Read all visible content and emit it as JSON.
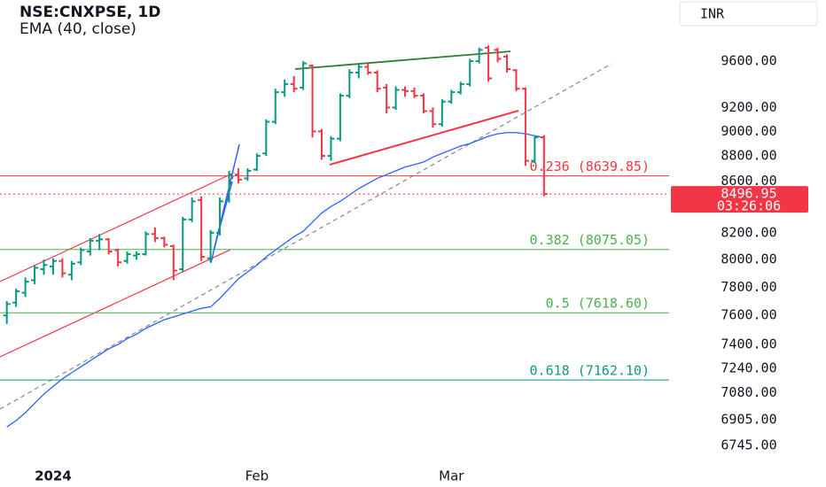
{
  "chart_data": {
    "type": "ohlc",
    "title": "NSE:CNXPSE, 1D",
    "subtitle": "EMA (40, close)",
    "currency": "INR",
    "log_scale": true,
    "up_color": "#089981",
    "down_color": "#f23645",
    "categories": [
      null,
      null,
      null,
      null,
      null,
      "2024",
      null,
      null,
      null,
      null,
      null,
      null,
      null,
      null,
      null,
      null,
      null,
      null,
      null,
      null,
      null,
      null,
      null,
      null,
      null,
      null,
      null,
      "Feb",
      null,
      null,
      null,
      null,
      null,
      null,
      null,
      null,
      null,
      null,
      null,
      null,
      null,
      null,
      null,
      null,
      null,
      null,
      null,
      null,
      "Mar",
      null,
      null,
      null,
      null,
      null,
      null,
      null,
      null,
      null,
      null
    ],
    "open": [
      7600,
      7690,
      7760,
      7850,
      7930,
      7950,
      7990,
      7890,
      7980,
      8060,
      8140,
      8150,
      8070,
      7990,
      8030,
      8040,
      8190,
      8160,
      8100,
      7930,
      8300,
      8450,
      8010,
      8200,
      8450,
      8650,
      8620,
      8690,
      8820,
      9080,
      9330,
      9400,
      9370,
      9560,
      9000,
      8800,
      8940,
      9300,
      9500,
      9550,
      9500,
      9370,
      9200,
      9350,
      9340,
      9300,
      9170,
      9060,
      9250,
      9330,
      9400,
      9600,
      9720,
      9700,
      9640,
      9520,
      9360,
      8760,
      8950
    ],
    "high": [
      7700,
      7790,
      7870,
      7960,
      8000,
      8010,
      8010,
      7990,
      8090,
      8160,
      8190,
      8160,
      8080,
      8060,
      8060,
      8210,
      8240,
      8170,
      8110,
      8320,
      8470,
      8480,
      8220,
      8470,
      8680,
      8700,
      8700,
      8820,
      9100,
      9360,
      9440,
      9470,
      9600,
      9570,
      9020,
      8960,
      9320,
      9530,
      9570,
      9580,
      9520,
      9400,
      9380,
      9380,
      9370,
      9320,
      9200,
      9270,
      9350,
      9420,
      9620,
      9720,
      9740,
      9720,
      9660,
      9530,
      9370,
      8960,
      8970
    ],
    "low": [
      7540,
      7660,
      7730,
      7820,
      7890,
      7890,
      7870,
      7850,
      7960,
      8030,
      8070,
      8040,
      7950,
      7970,
      8000,
      8030,
      8130,
      8090,
      7850,
      7910,
      8280,
      7990,
      7980,
      8180,
      8430,
      8580,
      8600,
      8680,
      8800,
      9060,
      9290,
      9330,
      9350,
      8950,
      8770,
      8760,
      8920,
      9280,
      9450,
      9480,
      9330,
      9150,
      9180,
      9290,
      9280,
      9150,
      9030,
      9040,
      9230,
      9310,
      9380,
      9580,
      9420,
      9590,
      9500,
      9340,
      8720,
      8740,
      8480
    ],
    "close": [
      7680,
      7770,
      7840,
      7940,
      7960,
      7990,
      7900,
      7970,
      8070,
      8140,
      8150,
      8060,
      7980,
      8040,
      8040,
      8190,
      8160,
      8110,
      7920,
      8300,
      8440,
      8020,
      8200,
      8440,
      8650,
      8610,
      8680,
      8800,
      9080,
      9330,
      9400,
      9360,
      9580,
      9000,
      8800,
      8940,
      9300,
      9500,
      9550,
      9500,
      9360,
      9200,
      9350,
      9340,
      9300,
      9170,
      9060,
      9250,
      9330,
      9400,
      9600,
      9700,
      9450,
      9620,
      9530,
      9360,
      8760,
      8950,
      8496.95
    ],
    "ema": {
      "name": "EMA (40, close)",
      "color": "#2962ff",
      "values": [
        6860,
        6900,
        6950,
        7010,
        7070,
        7120,
        7170,
        7210,
        7250,
        7290,
        7330,
        7370,
        7400,
        7440,
        7470,
        7510,
        7540,
        7570,
        7590,
        7610,
        7630,
        7650,
        7660,
        7720,
        7790,
        7860,
        7910,
        7960,
        8020,
        8070,
        8120,
        8170,
        8210,
        8280,
        8350,
        8400,
        8440,
        8490,
        8540,
        8580,
        8620,
        8650,
        8680,
        8710,
        8730,
        8750,
        8790,
        8820,
        8850,
        8880,
        8900,
        8930,
        8960,
        8980,
        8990,
        8990,
        8980,
        8965,
        8950
      ]
    },
    "fib_levels": [
      {
        "label": "0.236 (8639.85)",
        "value": 8639.85,
        "color": "#f23645"
      },
      {
        "label": "0.382 (8075.05)",
        "value": 8075.05,
        "color": "#4caf50"
      },
      {
        "label": "0.5 (7618.60)",
        "value": 7618.6,
        "color": "#4caf50"
      },
      {
        "label": "0.618 (7162.10)",
        "value": 7162.1,
        "color": "#089981"
      }
    ],
    "price_label": "8496.95",
    "countdown": "03:26:06",
    "ylim": [
      6652,
      10155
    ],
    "yticks": [
      {
        "value": 9600,
        "label": "9600.00"
      },
      {
        "value": 9200,
        "label": "9200.00"
      },
      {
        "value": 9000,
        "label": "9000.00"
      },
      {
        "value": 8800,
        "label": "8800.00"
      },
      {
        "value": 8600,
        "label": "8600.00"
      },
      {
        "value": 8200,
        "label": "8200.00"
      },
      {
        "value": 8000,
        "label": "8000.00"
      },
      {
        "value": 7800,
        "label": "7800.00"
      },
      {
        "value": 7600,
        "label": "7600.00"
      },
      {
        "value": 7400,
        "label": "7400.00"
      },
      {
        "value": 7240,
        "label": "7240.00"
      },
      {
        "value": 7080,
        "label": "7080.00"
      },
      {
        "value": 6905,
        "label": "6905.00"
      },
      {
        "value": 6745,
        "label": "6745.00"
      }
    ]
  }
}
